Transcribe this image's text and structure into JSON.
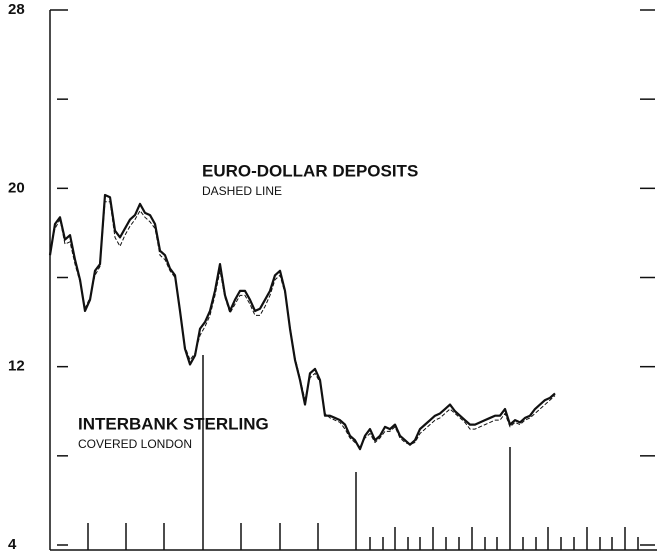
{
  "chart_data": {
    "type": "line",
    "annotations": [
      "EURO-DOLLAR DEPOSITS",
      "DASHED LINE",
      "INTERBANK STERLING",
      "COVERED LONDON"
    ],
    "ylim": [
      4,
      28
    ],
    "yticks": [
      4,
      12,
      20,
      28
    ],
    "yminorticks": [
      8,
      16,
      24
    ],
    "series": [
      {
        "color": "#111111",
        "dashed": false,
        "values": [
          17.0,
          18.4,
          18.7,
          17.7,
          17.9,
          16.8,
          15.9,
          14.5,
          15.0,
          16.3,
          16.6,
          19.7,
          19.6,
          18.1,
          17.8,
          18.2,
          18.6,
          18.8,
          19.3,
          18.9,
          18.8,
          18.4,
          17.2,
          17.0,
          16.4,
          16.1,
          14.5,
          12.8,
          12.1,
          12.5,
          13.7,
          14.0,
          14.5,
          15.4,
          16.6,
          15.2,
          14.5,
          15.0,
          15.4,
          15.4,
          15.0,
          14.5,
          14.6,
          15.0,
          15.4,
          16.1,
          16.3,
          15.4,
          13.7,
          12.3,
          11.4,
          10.3,
          11.7,
          11.9,
          11.4,
          9.8,
          9.8,
          9.7,
          9.6,
          9.4,
          8.9,
          8.7,
          8.3,
          8.9,
          9.2,
          8.7,
          8.9,
          9.3,
          9.2,
          9.4,
          8.9,
          8.7,
          8.5,
          8.7,
          9.2,
          9.4,
          9.6,
          9.8,
          9.9,
          10.1,
          10.3,
          10.0,
          9.8,
          9.6,
          9.4,
          9.4,
          9.5,
          9.6,
          9.7,
          9.8,
          9.8,
          10.1,
          9.4,
          9.6,
          9.5,
          9.7,
          9.8,
          10.1,
          10.3,
          10.5,
          10.6,
          10.8
        ]
      },
      {
        "color": "#111111",
        "dashed": true,
        "values": [
          17.2,
          18.2,
          18.6,
          17.5,
          17.6,
          16.6,
          15.8,
          14.6,
          15.1,
          16.1,
          16.5,
          19.4,
          19.4,
          17.8,
          17.4,
          17.9,
          18.3,
          18.6,
          19.0,
          18.7,
          18.5,
          18.2,
          17.0,
          16.8,
          16.3,
          16.0,
          14.6,
          12.9,
          12.3,
          12.6,
          13.4,
          13.8,
          14.3,
          15.2,
          16.3,
          15.1,
          14.4,
          14.8,
          15.2,
          15.2,
          14.8,
          14.3,
          14.3,
          14.7,
          15.2,
          15.9,
          16.1,
          15.3,
          13.8,
          12.4,
          11.5,
          10.5,
          11.5,
          11.7,
          11.3,
          9.9,
          9.7,
          9.6,
          9.5,
          9.2,
          8.8,
          8.6,
          8.4,
          8.8,
          9.0,
          8.6,
          8.8,
          9.1,
          9.1,
          9.3,
          8.8,
          8.6,
          8.5,
          8.6,
          9.0,
          9.2,
          9.4,
          9.6,
          9.7,
          9.9,
          10.1,
          9.9,
          9.7,
          9.5,
          9.2,
          9.2,
          9.3,
          9.4,
          9.5,
          9.6,
          9.6,
          9.9,
          9.3,
          9.5,
          9.4,
          9.6,
          9.7,
          9.9,
          10.1,
          10.3,
          10.5,
          10.7
        ]
      }
    ]
  }
}
